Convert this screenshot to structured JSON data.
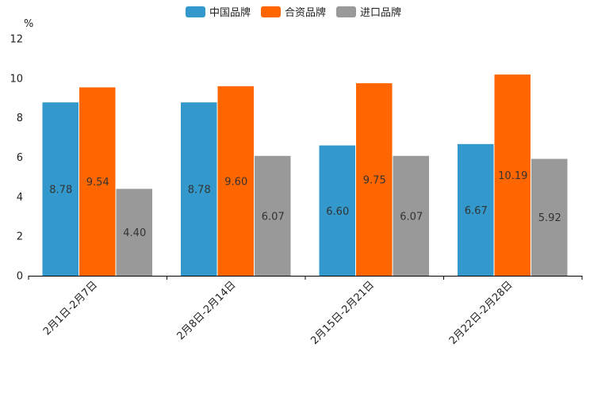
{
  "chart_data": {
    "type": "bar",
    "title": "",
    "xlabel": "",
    "ylabel": "%",
    "ylim": [
      0,
      12
    ],
    "yticks": [
      0,
      2,
      4,
      6,
      8,
      10,
      12
    ],
    "grid": false,
    "legend_position": "top-center",
    "categories": [
      "2月1日-2月7日",
      "2月8日-2月14日",
      "2月15日-2月21日",
      "2月22日-2月28日"
    ],
    "series": [
      {
        "name": "中国品牌",
        "color": "#3399cc",
        "values": [
          8.78,
          8.78,
          6.6,
          6.67
        ],
        "labels": [
          "8.78",
          "8.78",
          "6.60",
          "6.67"
        ]
      },
      {
        "name": "合资品牌",
        "color": "#ff6600",
        "values": [
          9.54,
          9.6,
          9.75,
          10.19
        ],
        "labels": [
          "9.54",
          "9.60",
          "9.75",
          "10.19"
        ]
      },
      {
        "name": "进口品牌",
        "color": "#999999",
        "values": [
          4.4,
          6.07,
          6.07,
          5.92
        ],
        "labels": [
          "4.40",
          "6.07",
          "6.07",
          "5.92"
        ]
      }
    ]
  }
}
